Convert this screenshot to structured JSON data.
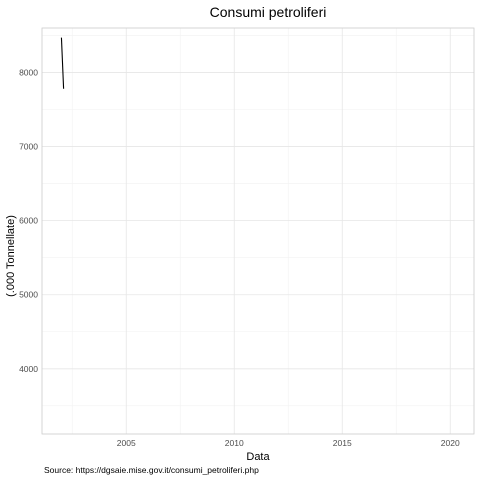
{
  "chart_data": {
    "type": "line",
    "title": "Consumi petroliferi",
    "xlabel": "Data",
    "ylabel": "(.000 Tonnellate)",
    "caption": "Source: https://dgsaie.mise.gov.it/consumi_petroliferi.php",
    "xlim": [
      2001.1,
      2021.1
    ],
    "ylim": [
      3120,
      8600
    ],
    "x_ticks": [
      2005,
      2010,
      2015,
      2020
    ],
    "y_ticks": [
      4000,
      5000,
      6000,
      7000,
      8000
    ],
    "grid": true,
    "series": [
      {
        "x": [
          2002.0,
          2002.1
        ],
        "values": [
          8470,
          7780
        ],
        "color": "#000000"
      }
    ]
  }
}
